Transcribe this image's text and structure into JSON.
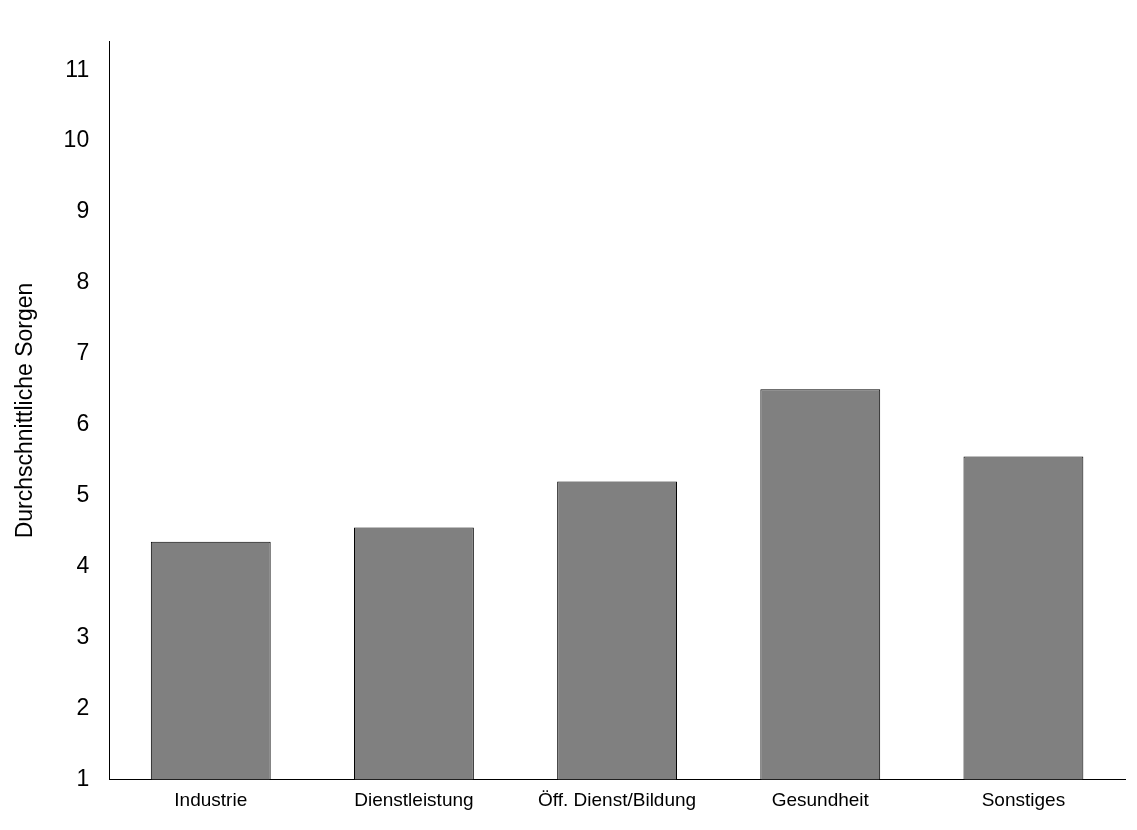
{
  "chart_data": {
    "type": "bar",
    "ylabel": "Durchschnittliche Sorgen",
    "categories": [
      "Industrie",
      "Dienstleistung",
      "Öff. Dienst/Bildung",
      "Gesundheit",
      "Sonstiges"
    ],
    "values": [
      4.35,
      4.55,
      5.2,
      6.5,
      5.55
    ],
    "color": "#808080",
    "ylim": [
      1,
      11.4
    ],
    "yticks": [
      1,
      2,
      3,
      4,
      5,
      6,
      7,
      8,
      9,
      10,
      11
    ],
    "grid": false,
    "legend": false
  }
}
